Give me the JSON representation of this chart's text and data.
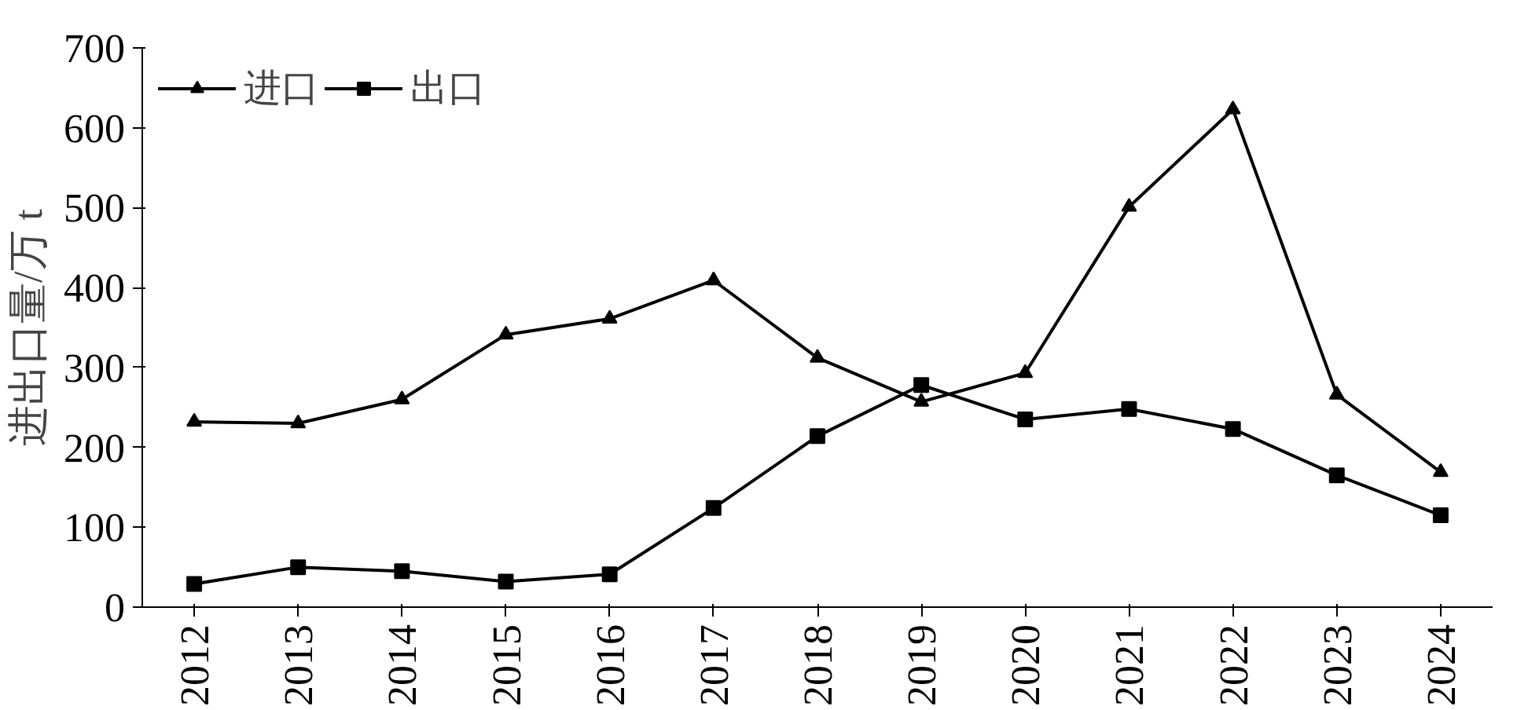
{
  "chart_data": {
    "type": "line",
    "ylabel": "进出口量/万 t",
    "categories": [
      "2012",
      "2013",
      "2014",
      "2015",
      "2016",
      "2017",
      "2018",
      "2019",
      "2020",
      "2021",
      "2022",
      "2023",
      "2024"
    ],
    "series": [
      {
        "name": "进口",
        "color": "#000000",
        "marker": "triangle",
        "values": [
          232,
          230,
          260,
          341,
          361,
          409,
          312,
          257,
          293,
          501,
          623,
          266,
          169
        ]
      },
      {
        "name": "出口",
        "color": "#000000",
        "marker": "square",
        "values": [
          29,
          50,
          45,
          32,
          41,
          124,
          214,
          278,
          235,
          248,
          223,
          165,
          115
        ]
      }
    ],
    "ylim": [
      0,
      700
    ],
    "yticks": [
      0,
      100,
      200,
      300,
      400,
      500,
      600,
      700
    ],
    "grid": false,
    "legend": "top left",
    "line_style": "solid"
  }
}
